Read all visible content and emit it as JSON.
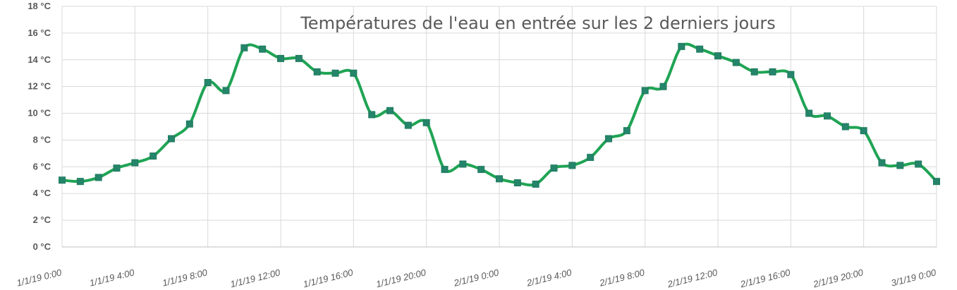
{
  "chart_data": {
    "type": "line",
    "title": "Températures de l'eau en entrée sur les 2 derniers jours",
    "xlabel": "",
    "ylabel": "",
    "y_unit": "°C",
    "ylim": [
      0,
      18
    ],
    "y_ticks": [
      0,
      2,
      4,
      6,
      8,
      10,
      12,
      14,
      16,
      18
    ],
    "y_tick_labels": [
      "0 °C",
      "2 °C",
      "4 °C",
      "6 °C",
      "8 °C",
      "10 °C",
      "12 °C",
      "14 °C",
      "16 °C",
      "18 °C"
    ],
    "x_tick_labels": [
      "1/1/19 0:00",
      "1/1/19 4:00",
      "1/1/19 8:00",
      "1/1/19 12:00",
      "1/1/19 16:00",
      "1/1/19 20:00",
      "2/1/19 0:00",
      "2/1/19 4:00",
      "2/1/19 8:00",
      "2/1/19 12:00",
      "2/1/19 16:00",
      "2/1/19 20:00",
      "3/1/19 0:00"
    ],
    "x_range_hours": [
      0,
      48
    ],
    "grid": true,
    "legend": "none",
    "series": [
      {
        "color": "#1fa454",
        "marker_color": "#24856a",
        "x_hours": [
          0,
          1,
          2,
          3,
          4,
          5,
          6,
          7,
          8,
          9,
          10,
          11,
          12,
          13,
          14,
          15,
          16,
          17,
          18,
          19,
          20,
          21,
          22,
          23,
          24,
          25,
          26,
          27,
          28,
          29,
          30,
          31,
          32,
          33,
          34,
          35,
          36,
          37,
          38,
          39,
          40,
          41,
          42,
          43,
          44,
          45,
          46,
          47,
          48
        ],
        "values": [
          5.0,
          4.9,
          5.2,
          5.9,
          6.3,
          6.8,
          8.1,
          9.2,
          12.3,
          11.7,
          14.9,
          14.8,
          14.1,
          14.1,
          13.1,
          13.0,
          13.0,
          9.9,
          10.2,
          9.1,
          9.3,
          5.8,
          6.2,
          5.8,
          5.1,
          4.8,
          4.7,
          5.9,
          6.1,
          6.7,
          8.1,
          8.7,
          11.7,
          12.0,
          15.0,
          14.8,
          14.3,
          13.8,
          13.1,
          13.1,
          12.9,
          10.0,
          9.8,
          9.0,
          8.7,
          6.3,
          6.1,
          6.2,
          4.9
        ]
      }
    ]
  },
  "colors": {
    "grid": "#d9d9d9",
    "axis": "#bfbfbf",
    "text": "#595959",
    "line": "#1fa454",
    "marker": "#24856a"
  }
}
